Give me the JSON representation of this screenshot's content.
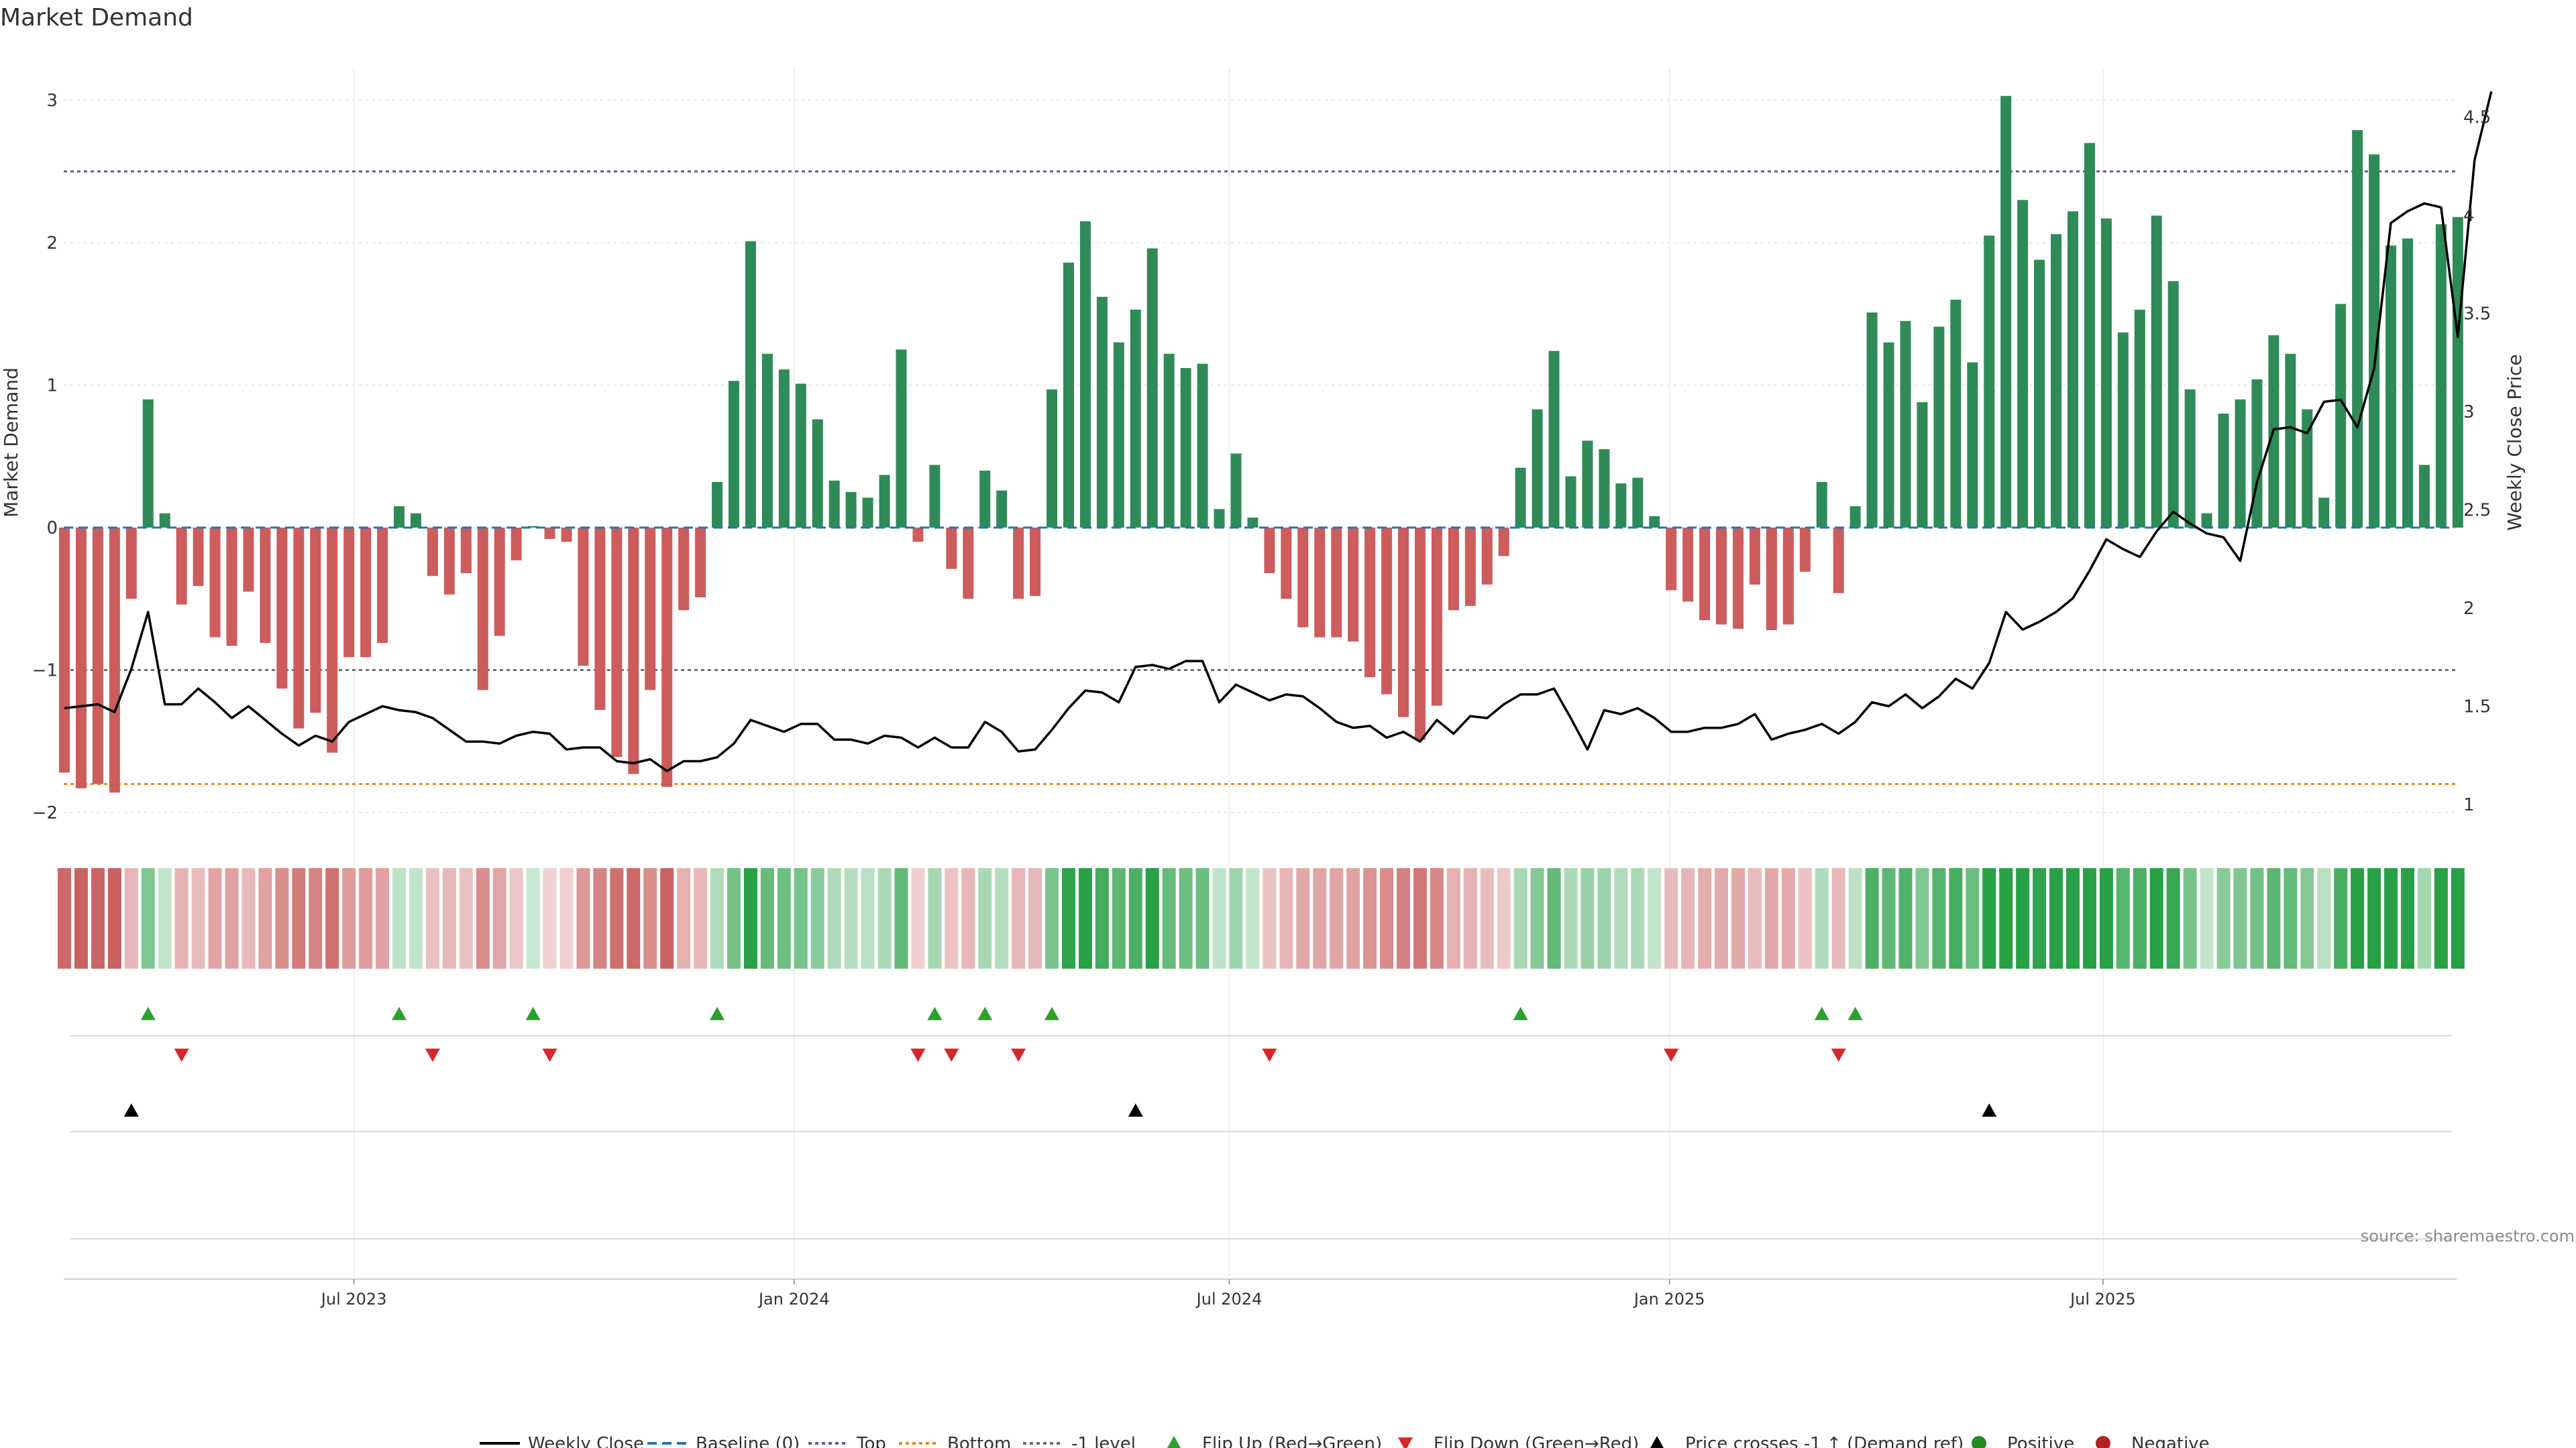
{
  "chart_data": {
    "type": "bar",
    "title": "Market Demand",
    "ylabel_left": "Market Demand",
    "ylabel_right": "Weekly Close Price",
    "ylim_left": [
      -2,
      3.2
    ],
    "ylim_right": [
      1,
      4.7
    ],
    "yticks_left": [
      "3",
      "2",
      "1",
      "0",
      "−1",
      "−2"
    ],
    "yticks_right": [
      "4.5",
      "4",
      "3.5",
      "3",
      "2.5",
      "2",
      "1.5",
      "1"
    ],
    "x_start": "2023-03-06",
    "x_ticks": [
      {
        "label": "Jul 2023",
        "week": 17.3
      },
      {
        "label": "Jan 2024",
        "week": 43.6
      },
      {
        "label": "Jul 2024",
        "week": 69.6
      },
      {
        "label": "Jan 2025",
        "week": 95.9
      },
      {
        "label": "Jul 2025",
        "week": 121.8
      }
    ],
    "reference_lines": {
      "baseline": 0,
      "top": 2.5,
      "bottom": -1.8,
      "minus_one_level": -1
    },
    "demand": [
      -1.72,
      -1.83,
      -1.8,
      -1.86,
      -0.5,
      0.9,
      0.1,
      -0.54,
      -0.41,
      -0.77,
      -0.83,
      -0.45,
      -0.81,
      -1.13,
      -1.41,
      -1.3,
      -1.58,
      -0.91,
      -0.91,
      -0.81,
      0.15,
      0.1,
      -0.34,
      -0.47,
      -0.32,
      -1.14,
      -0.76,
      -0.23,
      0.01,
      -0.08,
      -0.1,
      -0.97,
      -1.28,
      -1.61,
      -1.73,
      -1.14,
      -1.82,
      -0.58,
      -0.49,
      0.32,
      1.03,
      2.01,
      1.22,
      1.11,
      1.01,
      0.76,
      0.33,
      0.25,
      0.21,
      0.37,
      1.25,
      -0.1,
      0.44,
      -0.29,
      -0.5,
      0.4,
      0.26,
      -0.5,
      -0.48,
      0.97,
      1.86,
      2.15,
      1.62,
      1.3,
      1.53,
      1.96,
      1.22,
      1.12,
      1.15,
      0.13,
      0.52,
      0.07,
      -0.32,
      -0.5,
      -0.7,
      -0.77,
      -0.77,
      -0.8,
      -1.05,
      -1.17,
      -1.33,
      -1.49,
      -1.25,
      -0.58,
      -0.55,
      -0.4,
      -0.2,
      0.42,
      0.83,
      1.24,
      0.36,
      0.61,
      0.55,
      0.31,
      0.35,
      0.08,
      -0.44,
      -0.52,
      -0.65,
      -0.68,
      -0.71,
      -0.4,
      -0.72,
      -0.68,
      -0.31,
      0.32,
      -0.46,
      0.15,
      1.51,
      1.3,
      1.45,
      0.88,
      1.41,
      1.6,
      1.16,
      2.05,
      3.03,
      2.3,
      1.88,
      2.06,
      2.22,
      2.7,
      2.17,
      1.37,
      1.53,
      2.19,
      1.73,
      0.97,
      0.1,
      0.8,
      0.9,
      1.04,
      1.35,
      1.22,
      0.83,
      0.21,
      1.57,
      2.79,
      2.62,
      1.98,
      2.03,
      0.44,
      2.13,
      2.18
    ],
    "weekly_close": [
      1.49,
      1.5,
      1.51,
      1.47,
      1.69,
      1.98,
      1.51,
      1.51,
      1.59,
      1.52,
      1.44,
      1.5,
      1.43,
      1.36,
      1.3,
      1.35,
      1.32,
      1.42,
      1.46,
      1.5,
      1.48,
      1.47,
      1.44,
      1.38,
      1.32,
      1.32,
      1.31,
      1.35,
      1.37,
      1.36,
      1.28,
      1.29,
      1.29,
      1.22,
      1.21,
      1.23,
      1.17,
      1.22,
      1.22,
      1.24,
      1.31,
      1.43,
      1.4,
      1.37,
      1.41,
      1.41,
      1.33,
      1.33,
      1.31,
      1.35,
      1.34,
      1.29,
      1.34,
      1.29,
      1.29,
      1.42,
      1.37,
      1.27,
      1.28,
      1.38,
      1.49,
      1.58,
      1.57,
      1.52,
      1.7,
      1.71,
      1.69,
      1.73,
      1.73,
      1.52,
      1.61,
      1.57,
      1.53,
      1.56,
      1.55,
      1.49,
      1.42,
      1.39,
      1.4,
      1.34,
      1.37,
      1.32,
      1.43,
      1.36,
      1.45,
      1.44,
      1.51,
      1.56,
      1.56,
      1.59,
      1.44,
      1.28,
      1.48,
      1.46,
      1.49,
      1.44,
      1.37,
      1.37,
      1.39,
      1.39,
      1.41,
      1.46,
      1.33,
      1.36,
      1.38,
      1.41,
      1.36,
      1.42,
      1.52,
      1.5,
      1.56,
      1.49,
      1.55,
      1.64,
      1.59,
      1.72,
      1.98,
      1.89,
      1.93,
      1.98,
      2.05,
      2.19,
      2.35,
      2.3,
      2.26,
      2.39,
      2.49,
      2.43,
      2.38,
      2.36,
      2.24,
      2.64,
      2.91,
      2.92,
      2.89,
      3.05,
      3.06,
      2.92,
      3.22,
      3.96,
      4.02,
      4.06,
      4.04,
      3.38,
      4.28,
      4.63
    ],
    "heat_strip": "Market Demand intensity (green positive, red negative)",
    "flip_up_weeks": [
      5,
      20,
      28,
      39,
      52,
      55,
      59,
      87,
      105,
      107
    ],
    "flip_down_weeks": [
      7,
      22,
      29,
      51,
      53,
      57,
      72,
      96,
      106
    ],
    "price_cross_weeks": [
      4,
      64,
      115
    ],
    "legend": [
      {
        "label": "Weekly Close",
        "kind": "line",
        "color": "#000000"
      },
      {
        "label": "Baseline (0)",
        "kind": "dashed",
        "color": "#1f77b4"
      },
      {
        "label": "Top",
        "kind": "dotted",
        "color": "#5b5ea6"
      },
      {
        "label": "Bottom",
        "kind": "dotted",
        "color": "#e8891f"
      },
      {
        "label": "-1 level",
        "kind": "dotted",
        "color": "#6f6f6f"
      },
      {
        "label": "Flip Up (Red→Green)",
        "kind": "tri-up",
        "color": "#2ca02c"
      },
      {
        "label": "Flip Down (Green→Red)",
        "kind": "tri-down",
        "color": "#d62728"
      },
      {
        "label": "Price crosses -1 ↑ (Demand ref)",
        "kind": "tri-up",
        "color": "#000000"
      },
      {
        "label": "Positive",
        "kind": "dot",
        "color": "#228b22"
      },
      {
        "label": "Negative",
        "kind": "dot",
        "color": "#b22222"
      }
    ],
    "source": "source: sharemaestro.com",
    "colors": {
      "positive": "#2e8b57",
      "negative": "#cd5c5c"
    }
  }
}
